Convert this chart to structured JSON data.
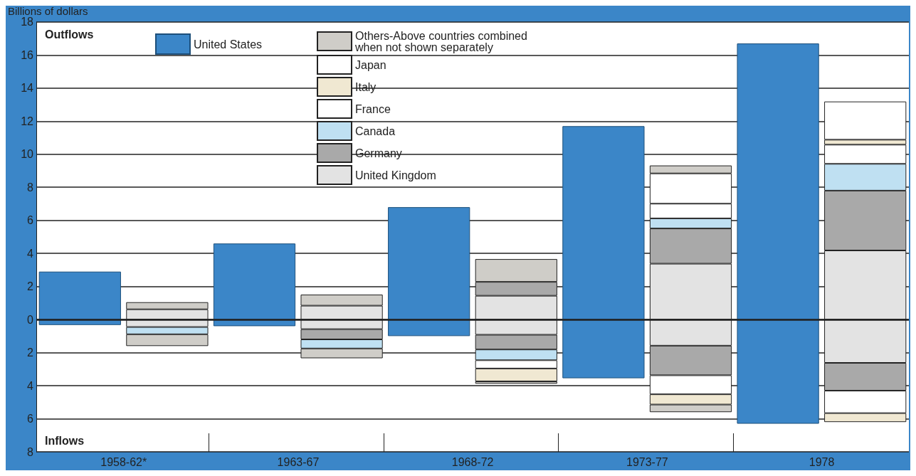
{
  "chart_data": {
    "type": "bar",
    "stacked": true,
    "ylabel": "Billions of dollars",
    "categories": [
      "1958-62*",
      null,
      "1963-67",
      null,
      "1968-72",
      null,
      "1973-77",
      null,
      "1978",
      null
    ],
    "ylim": [
      -8,
      18
    ],
    "yticks": [
      {
        "value": -8,
        "label": "8"
      },
      {
        "value": -6,
        "label": "6"
      },
      {
        "value": -4,
        "label": "4"
      },
      {
        "value": -2,
        "label": "2"
      },
      0,
      2,
      4,
      6,
      8,
      10,
      12,
      14,
      16,
      18
    ],
    "grid": "y",
    "legend": "top",
    "annotations": [
      "Outflows",
      "Inflows"
    ],
    "series": [
      {
        "name": "United States",
        "color": "#3b86c8",
        "values": [
          2.9,
          null,
          4.6,
          null,
          6.8,
          null,
          11.7,
          null,
          16.7,
          null
        ]
      },
      {
        "color": "#3b86c8",
        "values": [
          -0.33,
          null,
          -0.4,
          null,
          -1.0,
          null,
          -3.55,
          null,
          -6.3,
          null
        ]
      },
      {
        "name": "United Kingdom",
        "color": "#e3e3e3",
        "values": [
          null,
          0.62,
          null,
          0.84,
          null,
          1.44,
          null,
          3.38,
          null,
          4.18
        ]
      },
      {
        "name": "Germany",
        "color": "#a9a9a9",
        "values": [
          null,
          null,
          null,
          null,
          null,
          0.84,
          null,
          2.13,
          null,
          3.62
        ]
      },
      {
        "name": "Canada",
        "color": "#bfe0f2",
        "values": [
          null,
          null,
          null,
          null,
          null,
          null,
          null,
          0.61,
          null,
          1.62
        ]
      },
      {
        "name": "France",
        "color": "#ffffff",
        "values": [
          null,
          null,
          null,
          null,
          null,
          null,
          null,
          0.89,
          null,
          1.16
        ]
      },
      {
        "name": "Italy",
        "color": "#f0e8d2",
        "values": [
          null,
          null,
          null,
          null,
          null,
          null,
          null,
          null,
          null,
          0.3
        ]
      },
      {
        "name": "Japan",
        "color": "#ffffff",
        "values": [
          null,
          null,
          null,
          null,
          null,
          null,
          null,
          1.83,
          null,
          2.31
        ]
      },
      {
        "name": "Others-Above countries combined when not shown separately",
        "color": "#cfcdc8",
        "values": [
          null,
          0.43,
          null,
          0.67,
          null,
          1.38,
          null,
          0.48,
          null,
          null
        ]
      },
      {
        "color": "#e3e3e3",
        "values": [
          null,
          -0.45,
          null,
          -0.58,
          null,
          -0.92,
          null,
          -1.58,
          null,
          -2.62
        ]
      },
      {
        "color": "#a9a9a9",
        "values": [
          null,
          null,
          null,
          -0.62,
          null,
          -0.89,
          null,
          -1.79,
          null,
          -1.68
        ]
      },
      {
        "color": "#bfe0f2",
        "values": [
          null,
          -0.44,
          null,
          -0.55,
          null,
          -0.65,
          null,
          null,
          null,
          null
        ]
      },
      {
        "color": "#ffffff",
        "values": [
          null,
          null,
          null,
          null,
          null,
          -0.5,
          null,
          -1.15,
          null,
          -1.36
        ]
      },
      {
        "color": "#f0e8d2",
        "values": [
          null,
          null,
          null,
          null,
          null,
          -0.78,
          null,
          -0.62,
          null,
          -0.54
        ]
      },
      {
        "color": "#cfcdc8",
        "values": [
          null,
          -0.71,
          null,
          -0.59,
          null,
          -0.14,
          null,
          -0.46,
          null,
          null
        ]
      }
    ]
  }
}
